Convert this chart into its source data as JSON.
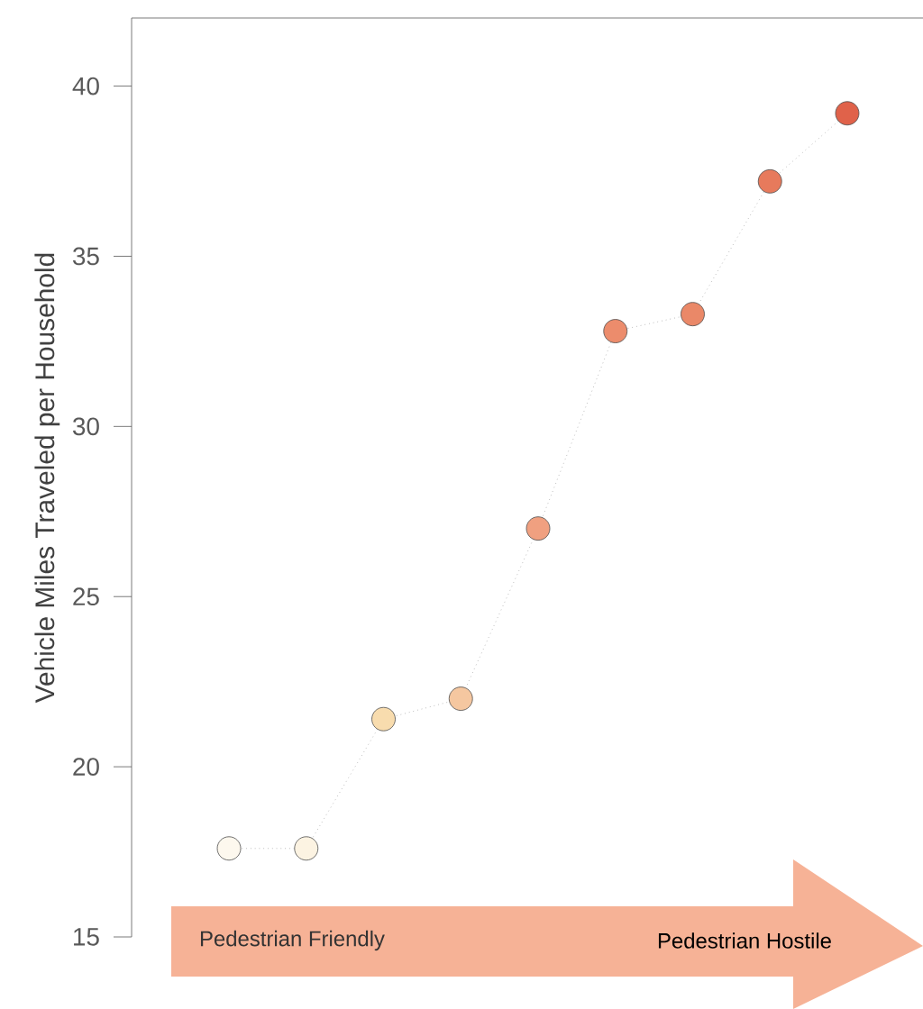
{
  "chart_data": {
    "type": "line",
    "ylabel": "Vehicle Miles Traveled per Household",
    "categories": [
      null,
      null,
      null,
      null,
      null,
      null,
      null,
      null,
      null
    ],
    "values": [
      17.6,
      17.6,
      21.4,
      22.0,
      27.0,
      32.8,
      33.3,
      37.2,
      39.2
    ],
    "colors": [
      "#fdf8ee",
      "#fcf3e2",
      "#f8dcae",
      "#f5c7a0",
      "#f0a080",
      "#ec8c6c",
      "#ea8868",
      "#e77a5c",
      "#e0624a"
    ],
    "color": "#999999",
    "ylim": [
      15,
      42
    ],
    "yticks": [
      15,
      20,
      25,
      30,
      35,
      40
    ],
    "tick_labels": "y",
    "grid": false,
    "marker": "circle",
    "line_style": "dotted",
    "annotations": [
      "Pedestrian Friendly",
      "Pedestrian Hostile"
    ]
  }
}
